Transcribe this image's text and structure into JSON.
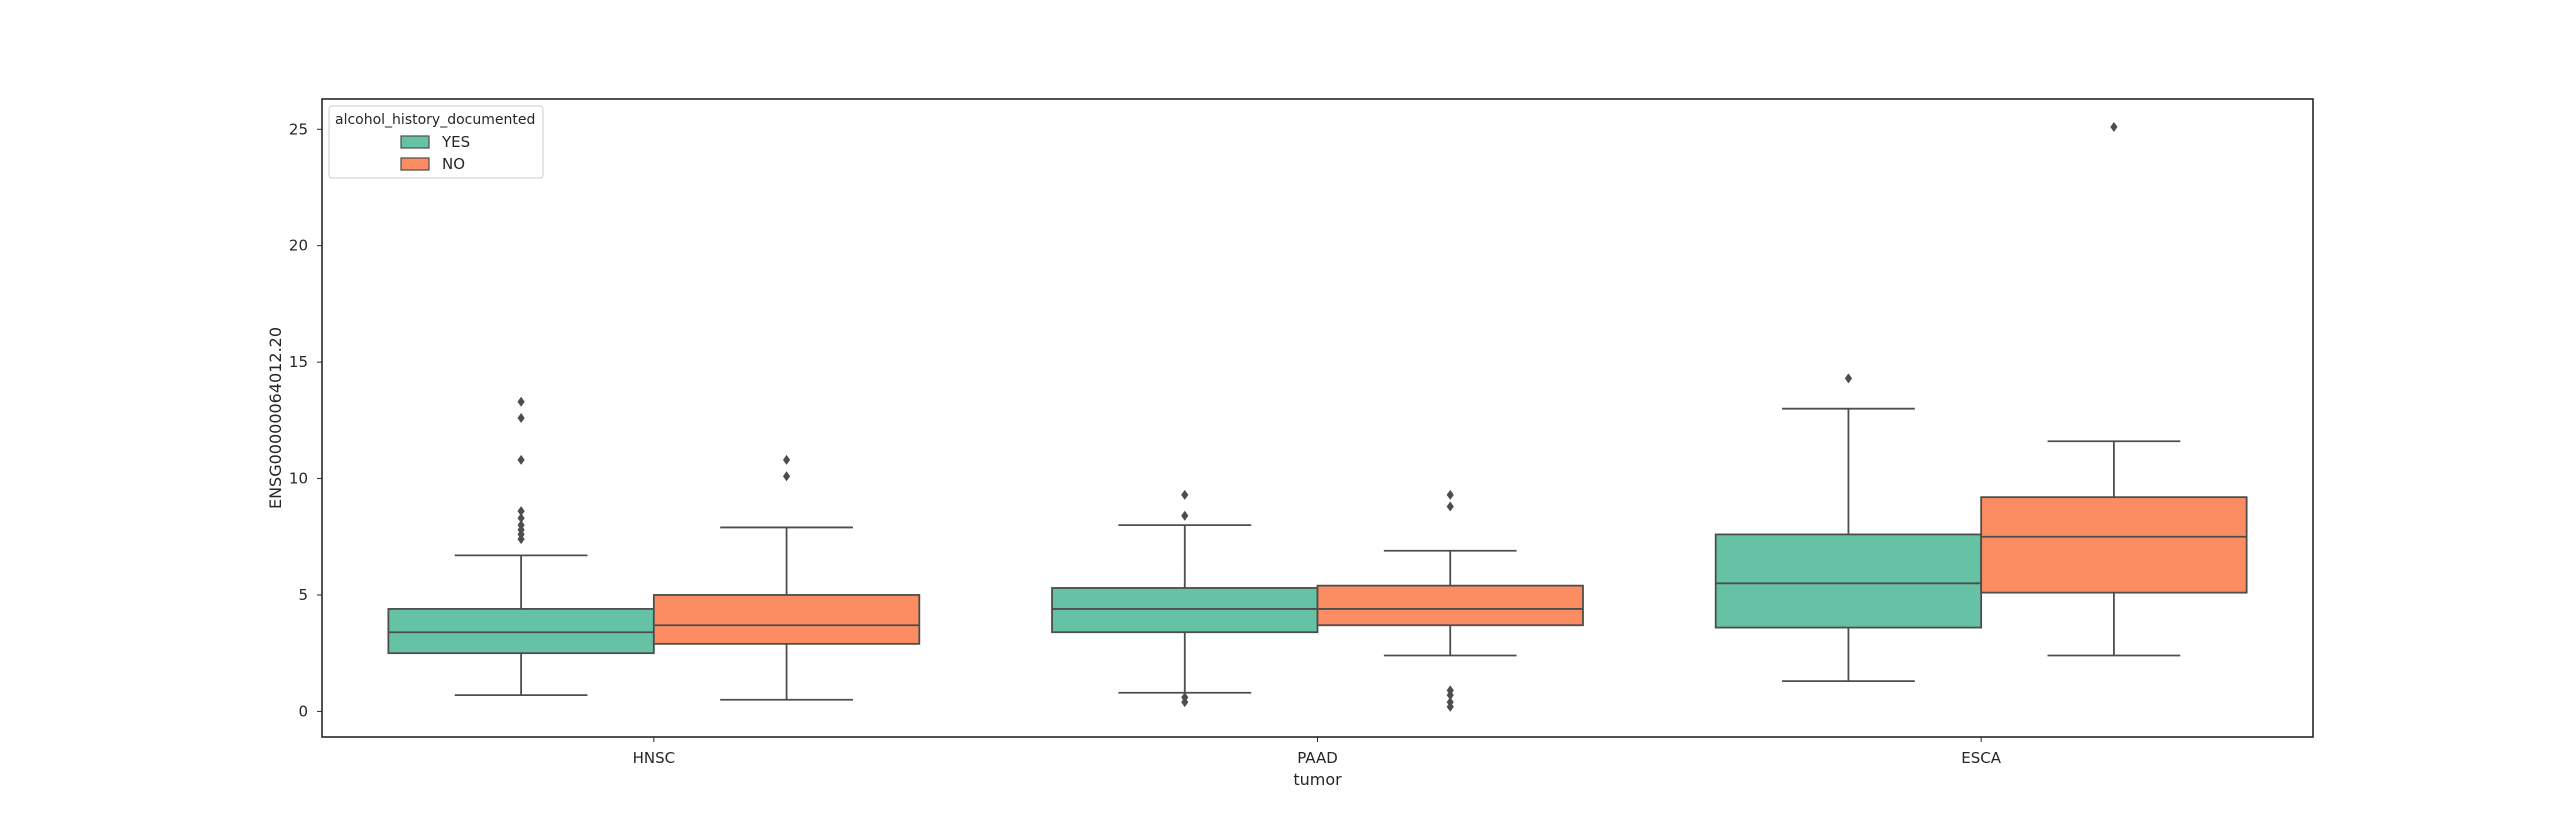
{
  "chart_data": {
    "type": "box",
    "xlabel": "tumor",
    "ylabel": "ENSG00000064012.20",
    "categories": [
      "HNSC",
      "PAAD",
      "ESCA"
    ],
    "yticks": [
      0,
      5,
      10,
      15,
      20,
      25
    ],
    "ylim": [
      -1.1,
      26.3
    ],
    "grid": false,
    "legend": {
      "title": "alcohol_history_documented",
      "placement": "top-left"
    },
    "series": [
      {
        "name": "YES",
        "color": "#66c2a5",
        "boxes": [
          {
            "category": "HNSC",
            "whisker_low": 0.7,
            "q1": 2.5,
            "median": 3.4,
            "q3": 4.4,
            "whisker_high": 6.7,
            "outliers": [
              7.4,
              7.6,
              7.8,
              8.0,
              8.3,
              8.6,
              10.8,
              12.6,
              13.3
            ]
          },
          {
            "category": "PAAD",
            "whisker_low": 0.8,
            "q1": 3.4,
            "median": 4.4,
            "q3": 5.3,
            "whisker_high": 8.0,
            "outliers": [
              0.4,
              0.6,
              8.4,
              9.3
            ]
          },
          {
            "category": "ESCA",
            "whisker_low": 1.3,
            "q1": 3.6,
            "median": 5.5,
            "q3": 7.6,
            "whisker_high": 13.0,
            "outliers": [
              14.3
            ]
          }
        ]
      },
      {
        "name": "NO",
        "color": "#fc8d62",
        "boxes": [
          {
            "category": "HNSC",
            "whisker_low": 0.5,
            "q1": 2.9,
            "median": 3.7,
            "q3": 5.0,
            "whisker_high": 7.9,
            "outliers": [
              10.1,
              10.8
            ]
          },
          {
            "category": "PAAD",
            "whisker_low": 2.4,
            "q1": 3.7,
            "median": 4.4,
            "q3": 5.4,
            "whisker_high": 6.9,
            "outliers": [
              0.2,
              0.4,
              0.7,
              0.9,
              8.8,
              9.3
            ]
          },
          {
            "category": "ESCA",
            "whisker_low": 2.4,
            "q1": 5.1,
            "median": 7.5,
            "q3": 9.2,
            "whisker_high": 11.6,
            "outliers": [
              25.1
            ]
          }
        ]
      }
    ]
  }
}
